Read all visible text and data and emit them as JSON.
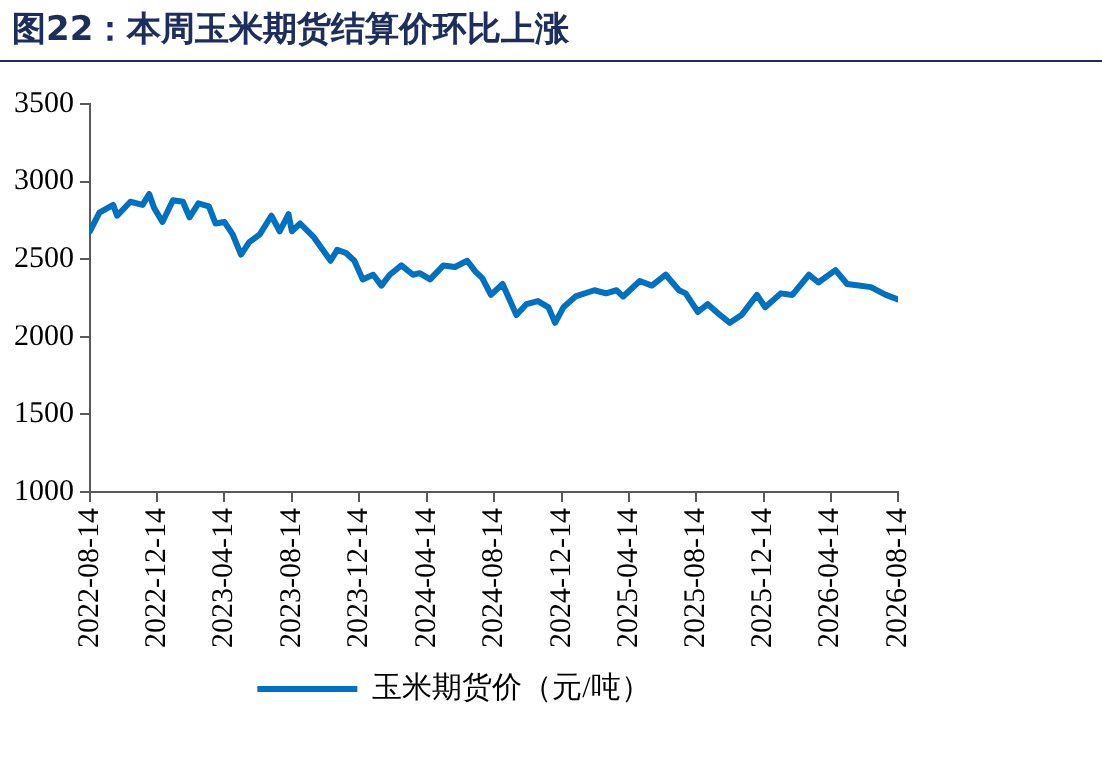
{
  "chart_data": {
    "type": "line",
    "title": "图22：本周玉米期货结算价环比上涨",
    "x": [
      "2022-08-14",
      "2022-08-31",
      "2022-09-25",
      "2022-10-02",
      "2022-10-26",
      "2022-11-17",
      "2022-11-29",
      "2022-12-08",
      "2022-12-23",
      "2023-01-11",
      "2023-01-29",
      "2023-02-10",
      "2023-02-26",
      "2023-03-17",
      "2023-03-29",
      "2023-04-14",
      "2023-04-29",
      "2023-05-14",
      "2023-05-29",
      "2023-06-17",
      "2023-07-08",
      "2023-07-23",
      "2023-08-08",
      "2023-08-14",
      "2023-08-29",
      "2023-09-23",
      "2023-10-23",
      "2023-11-04",
      "2023-11-20",
      "2023-12-05",
      "2023-12-20",
      "2024-01-08",
      "2024-01-23",
      "2024-02-07",
      "2024-02-28",
      "2024-03-20",
      "2024-04-01",
      "2024-04-20",
      "2024-05-14",
      "2024-06-04",
      "2024-06-26",
      "2024-07-11",
      "2024-07-23",
      "2024-08-08",
      "2024-08-29",
      "2024-09-23",
      "2024-10-11",
      "2024-11-01",
      "2024-11-20",
      "2024-12-02",
      "2024-12-17",
      "2025-01-08",
      "2025-02-11",
      "2025-03-04",
      "2025-03-23",
      "2025-04-04",
      "2025-05-04",
      "2025-05-26",
      "2025-06-20",
      "2025-07-14",
      "2025-07-26",
      "2025-08-17",
      "2025-09-04",
      "2025-09-23",
      "2025-10-14",
      "2025-11-04",
      "2025-12-02",
      "2025-12-17",
      "2026-01-14",
      "2026-02-04",
      "2026-03-06",
      "2026-03-23",
      "2026-04-23",
      "2026-05-14",
      "2026-06-04",
      "2026-06-26",
      "2026-07-23",
      "2026-08-14"
    ],
    "series": [
      {
        "name": "玉米期货价（元/吨）",
        "color": "#0070c0",
        "values": [
          2680,
          2800,
          2850,
          2780,
          2870,
          2850,
          2920,
          2830,
          2740,
          2880,
          2870,
          2770,
          2860,
          2840,
          2730,
          2740,
          2660,
          2530,
          2610,
          2660,
          2780,
          2680,
          2790,
          2680,
          2730,
          2640,
          2490,
          2560,
          2540,
          2490,
          2370,
          2400,
          2330,
          2400,
          2460,
          2400,
          2410,
          2370,
          2460,
          2450,
          2490,
          2420,
          2380,
          2270,
          2340,
          2140,
          2210,
          2230,
          2190,
          2090,
          2190,
          2260,
          2300,
          2280,
          2300,
          2260,
          2360,
          2330,
          2400,
          2300,
          2280,
          2160,
          2210,
          2150,
          2090,
          2140,
          2270,
          2190,
          2280,
          2270,
          2400,
          2350,
          2430,
          2340,
          2330,
          2320,
          2270,
          2240
        ]
      }
    ],
    "xlim": [
      "2022-08-14",
      "2026-08-14"
    ],
    "xticks": [
      "2022-08-14",
      "2022-12-14",
      "2023-04-14",
      "2023-08-14",
      "2023-12-14",
      "2024-04-14",
      "2024-08-14",
      "2024-12-14",
      "2025-04-14",
      "2025-08-14",
      "2025-12-14",
      "2026-04-14",
      "2026-08-14"
    ],
    "ylim": [
      1000,
      3500
    ],
    "yticks": [
      1000,
      1500,
      2000,
      2500,
      3000,
      3500
    ],
    "grid": false,
    "legend": "bottom",
    "marker": "none",
    "line_style": "solid"
  }
}
